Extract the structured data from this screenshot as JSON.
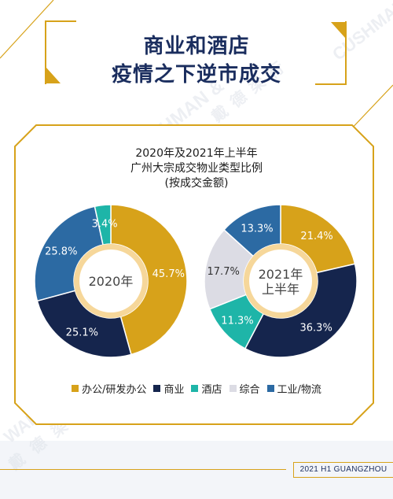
{
  "title": {
    "line1": "商业和酒店",
    "line2": "疫情之下逆市成交"
  },
  "subtitle": {
    "line1": "2020年及2021年上半年",
    "line2": "广州大宗成交物业类型比例",
    "line3": "(按成交金额)"
  },
  "watermark": {
    "brand1": "CUSHMAN &",
    "brand2": "WAKEFIELD",
    "cn": "戴德梁行"
  },
  "colors": {
    "gold": "#d7a21a",
    "navy": "#15254d",
    "teal": "#1eb5a8",
    "lightgray": "#dcdce4",
    "blue": "#2c6aa3",
    "inner_ring": "#f6d79a",
    "title_text": "#1a2d5e"
  },
  "legend": [
    {
      "label": "办公/研发办公",
      "color": "#d7a21a"
    },
    {
      "label": "商业",
      "color": "#15254d"
    },
    {
      "label": "酒店",
      "color": "#1eb5a8"
    },
    {
      "label": "综合",
      "color": "#dcdce4"
    },
    {
      "label": "工业/物流",
      "color": "#2c6aa3"
    }
  ],
  "footer": "2021 H1 GUANGZHOU",
  "chart_data": [
    {
      "type": "pie",
      "center_label": [
        "2020年"
      ],
      "slices": [
        {
          "name": "办公/研发办公",
          "value": 45.7,
          "label": "45.7%"
        },
        {
          "name": "商业",
          "value": 25.1,
          "label": "25.1%"
        },
        {
          "name": "工业/物流",
          "value": 25.8,
          "label": "25.8%"
        },
        {
          "name": "酒店",
          "value": 3.4,
          "label": "3.4%"
        }
      ]
    },
    {
      "type": "pie",
      "center_label": [
        "2021年",
        "上半年"
      ],
      "slices": [
        {
          "name": "办公/研发办公",
          "value": 21.4,
          "label": "21.4%"
        },
        {
          "name": "商业",
          "value": 36.3,
          "label": "36.3%"
        },
        {
          "name": "酒店",
          "value": 11.3,
          "label": "11.3%"
        },
        {
          "name": "综合",
          "value": 17.7,
          "label": "17.7%"
        },
        {
          "name": "工业/物流",
          "value": 13.3,
          "label": "13.3%"
        }
      ]
    }
  ]
}
